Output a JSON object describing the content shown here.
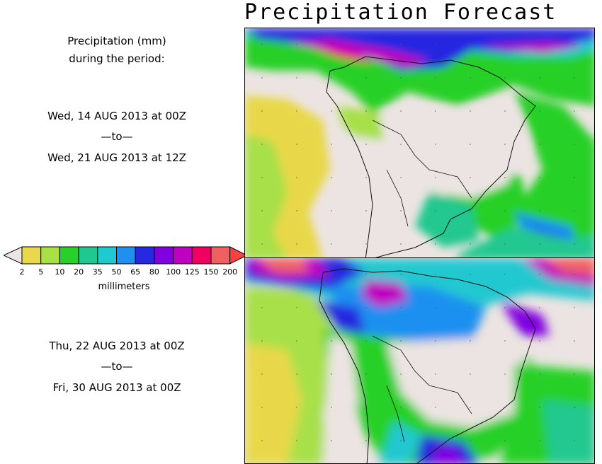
{
  "title": "Precipitation Forecast",
  "header_label": {
    "line1": "Precipitation (mm)",
    "line2": "during the period:"
  },
  "period1": {
    "start": "Wed, 14 AUG 2013 at 00Z",
    "sep": "—to—",
    "end": "Wed, 21 AUG 2013 at 12Z"
  },
  "period2": {
    "start": "Thu, 22 AUG 2013 at 00Z",
    "sep": "—to—",
    "end": "Fri, 30 AUG 2013 at 00Z"
  },
  "colorbar": {
    "units": "millimeters",
    "labels": [
      "2",
      "5",
      "10",
      "20",
      "35",
      "50",
      "65",
      "80",
      "100",
      "125",
      "150",
      "200"
    ],
    "colors": [
      "#e8d84a",
      "#a8e048",
      "#28d028",
      "#20c890",
      "#20c8d0",
      "#1f90f0",
      "#2828e0",
      "#8000e0",
      "#c000c0",
      "#f00060",
      "#f06060"
    ],
    "under_color": "#ece4e2",
    "over_color": "#ff4040"
  }
}
